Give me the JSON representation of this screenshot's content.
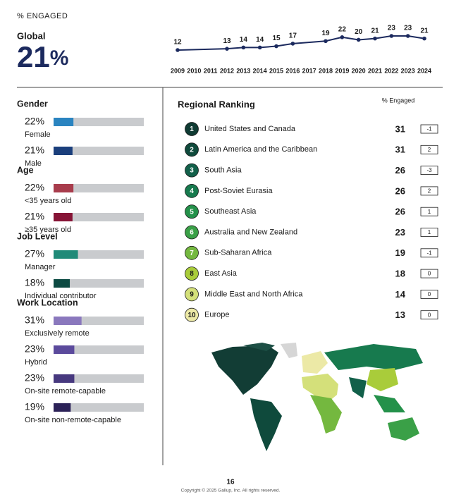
{
  "header": {
    "title": "% ENGAGED"
  },
  "global": {
    "label": "Global",
    "value": 21,
    "unit": "%"
  },
  "trend": {
    "type": "line",
    "color": "#1c2a5e",
    "x": [
      2009,
      2012,
      2013,
      2014,
      2015,
      2016,
      2018,
      2019,
      2020,
      2021,
      2022,
      2023,
      2024
    ],
    "values": [
      12,
      13,
      14,
      14,
      15,
      17,
      19,
      22,
      20,
      21,
      23,
      23,
      21
    ],
    "xticks": [
      2009,
      2010,
      2011,
      2012,
      2013,
      2014,
      2015,
      2016,
      2017,
      2018,
      2019,
      2020,
      2021,
      2022,
      2023,
      2024
    ]
  },
  "breakdowns": {
    "xlim": [
      0,
      100
    ],
    "groups": [
      {
        "title": "Gender",
        "items": [
          {
            "label": "Female",
            "value": 22,
            "value_label": "22%",
            "color": "#2a84c0"
          },
          {
            "label": "Male",
            "value": 21,
            "value_label": "21%",
            "color": "#1b3f7c"
          }
        ]
      },
      {
        "title": "Age",
        "items": [
          {
            "label": "<35 years old",
            "value": 22,
            "value_label": "22%",
            "color": "#a83c4c"
          },
          {
            "label": "≥35 years old",
            "value": 21,
            "value_label": "21%",
            "color": "#861436"
          }
        ]
      },
      {
        "title": "Job Level",
        "items": [
          {
            "label": "Manager",
            "value": 27,
            "value_label": "27%",
            "color": "#1f8a78"
          },
          {
            "label": "Individual contributor",
            "value": 18,
            "value_label": "18%",
            "color": "#0c4a42"
          }
        ]
      },
      {
        "title": "Work Location",
        "items": [
          {
            "label": "Exclusively remote",
            "value": 31,
            "value_label": "31%",
            "color": "#8a78bd"
          },
          {
            "label": "Hybrid",
            "value": 23,
            "value_label": "23%",
            "color": "#5b4a9c"
          },
          {
            "label": "On-site remote-capable",
            "value": 23,
            "value_label": "23%",
            "color": "#47397f"
          },
          {
            "label": "On-site non-remote-capable",
            "value": 19,
            "value_label": "19%",
            "color": "#2c2258"
          }
        ]
      }
    ]
  },
  "ranking": {
    "title": "Regional Ranking",
    "column_header": "% Engaged",
    "rows": [
      {
        "rank": 1,
        "region": "United States and Canada",
        "value": 31,
        "change": -1,
        "color": "#0f3b33"
      },
      {
        "rank": 2,
        "region": "Latin America and the Caribbean",
        "value": 31,
        "change": 2,
        "color": "#0f4a3c"
      },
      {
        "rank": 3,
        "region": "South Asia",
        "value": 26,
        "change": -3,
        "color": "#12604a"
      },
      {
        "rank": 4,
        "region": "Post-Soviet Eurasia",
        "value": 26,
        "change": 2,
        "color": "#177a4e"
      },
      {
        "rank": 5,
        "region": "Southeast Asia",
        "value": 26,
        "change": 1,
        "color": "#24914a"
      },
      {
        "rank": 6,
        "region": "Australia and New Zealand",
        "value": 23,
        "change": 1,
        "color": "#3aa047"
      },
      {
        "rank": 7,
        "region": "Sub-Saharan Africa",
        "value": 19,
        "change": -1,
        "color": "#74b83f"
      },
      {
        "rank": 8,
        "region": "East Asia",
        "value": 18,
        "change": 0,
        "color": "#a9cc3a"
      },
      {
        "rank": 9,
        "region": "Middle East and North Africa",
        "value": 14,
        "change": 0,
        "color": "#d4e07a"
      },
      {
        "rank": 10,
        "region": "Europe",
        "value": 13,
        "change": 0,
        "color": "#ece9a6"
      }
    ]
  },
  "footer": {
    "page": "16",
    "copyright": "Copyright © 2025 Gallup, Inc. All rights reserved."
  }
}
